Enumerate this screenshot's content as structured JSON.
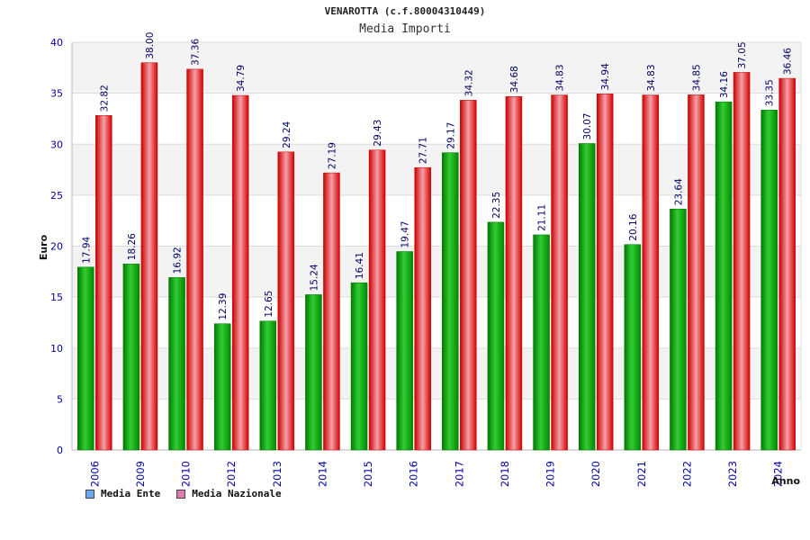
{
  "chart_data": {
    "type": "bar",
    "title": "VENAROTTA (c.f.80004310449)",
    "subtitle": "Media Importi",
    "xlabel": "Anno",
    "ylabel": "Euro",
    "ylim": [
      0,
      40
    ],
    "yticks": [
      "0",
      "5",
      "10",
      "15",
      "20",
      "25",
      "30",
      "35",
      "40"
    ],
    "grid": true,
    "categories": [
      "2006",
      "2009",
      "2010",
      "2012",
      "2013",
      "2014",
      "2015",
      "2016",
      "2017",
      "2018",
      "2019",
      "2020",
      "2021",
      "2022",
      "2023",
      "2024"
    ],
    "series": [
      {
        "name": "Media Ente",
        "color": "#00a000",
        "values": [
          17.94,
          18.26,
          16.92,
          12.39,
          12.65,
          15.24,
          16.41,
          19.47,
          29.17,
          22.35,
          21.11,
          30.07,
          20.16,
          23.64,
          34.16,
          33.35
        ],
        "labels": [
          "17.94",
          "18.26",
          "16.92",
          "12.39",
          "12.65",
          "15.24",
          "16.41",
          "19.47",
          "29.17",
          "22.35",
          "21.11",
          "30.07",
          "20.16",
          "23.64",
          "34.16",
          "33.35"
        ]
      },
      {
        "name": "Media Nazionale",
        "color": "#e00000",
        "values": [
          32.82,
          38.0,
          37.36,
          34.79,
          29.24,
          27.19,
          29.43,
          27.71,
          34.32,
          34.68,
          34.83,
          34.94,
          34.83,
          34.85,
          37.05,
          36.46
        ],
        "labels": [
          "32.82",
          "38.00",
          "37.36",
          "34.79",
          "29.24",
          "27.19",
          "29.43",
          "27.71",
          "34.32",
          "34.68",
          "34.83",
          "34.94",
          "34.83",
          "34.85",
          "37.05",
          "36.46"
        ]
      }
    ],
    "legend": {
      "position": "bottom-left",
      "items": [
        {
          "label": "Media Ente",
          "color": "#6fa8f0"
        },
        {
          "label": "Media Nazionale",
          "color": "#e07ab0"
        }
      ]
    }
  }
}
